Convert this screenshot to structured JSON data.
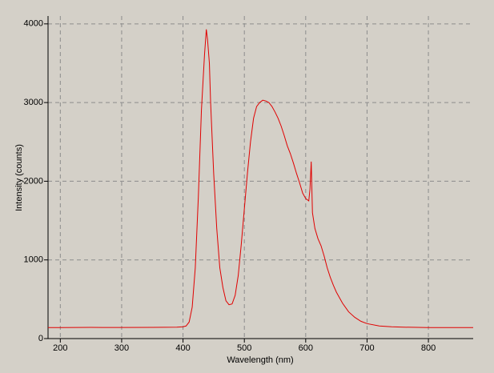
{
  "chart_data": {
    "type": "line",
    "x_label": "Wavelength (nm)",
    "y_label": "Intensity (counts)",
    "x": [
      180,
      200,
      250,
      300,
      350,
      390,
      400,
      405,
      410,
      415,
      420,
      425,
      430,
      435,
      438,
      440,
      443,
      445,
      450,
      455,
      460,
      465,
      470,
      475,
      480,
      485,
      490,
      495,
      500,
      505,
      510,
      515,
      520,
      525,
      530,
      535,
      540,
      545,
      550,
      555,
      560,
      565,
      570,
      575,
      580,
      585,
      590,
      595,
      600,
      605,
      607,
      609,
      611,
      615,
      620,
      625,
      630,
      635,
      640,
      645,
      650,
      660,
      670,
      680,
      690,
      700,
      720,
      740,
      760,
      800,
      840,
      873
    ],
    "series": [
      {
        "name": "Intensity",
        "color": "#e00000",
        "values": [
          140,
          140,
          142,
          141,
          143,
          145,
          150,
          160,
          210,
          400,
          900,
          1800,
          2900,
          3600,
          3930,
          3800,
          3500,
          3000,
          2100,
          1400,
          900,
          650,
          480,
          430,
          440,
          550,
          800,
          1200,
          1650,
          2100,
          2500,
          2800,
          2950,
          3000,
          3030,
          3020,
          3000,
          2950,
          2880,
          2800,
          2700,
          2580,
          2450,
          2350,
          2230,
          2100,
          1980,
          1850,
          1780,
          1750,
          1900,
          2250,
          1600,
          1400,
          1270,
          1180,
          1050,
          900,
          780,
          680,
          590,
          450,
          340,
          270,
          220,
          190,
          160,
          150,
          145,
          140,
          140,
          140
        ]
      }
    ],
    "xlim": [
      180,
      873
    ],
    "ylim": [
      0,
      4100
    ],
    "xticks": [
      200,
      300,
      400,
      500,
      600,
      700,
      800
    ],
    "yticks": [
      0,
      1000,
      2000,
      3000,
      4000
    ],
    "grid": true
  }
}
